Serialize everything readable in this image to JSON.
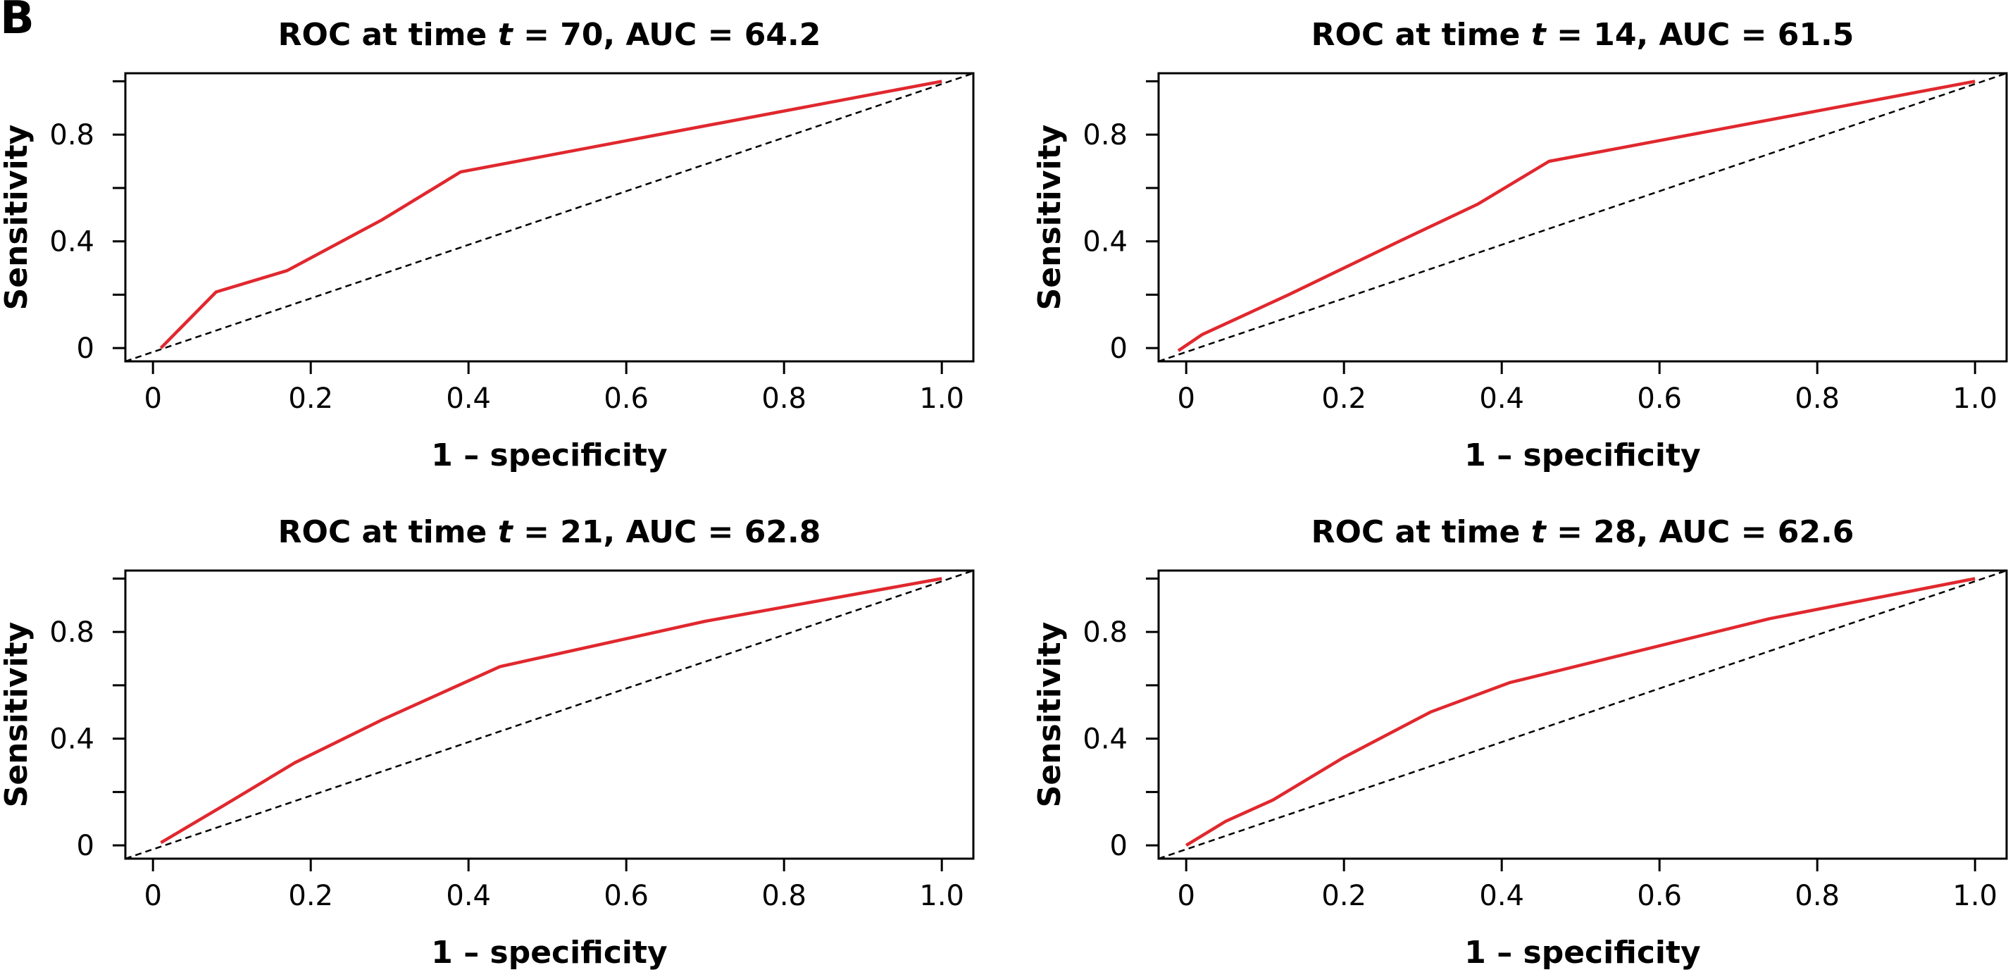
{
  "panel_label": "B",
  "colors": {
    "roc_line": "#e0282e",
    "reference_line": "#000000",
    "axes": "#000000"
  },
  "chart_data": [
    {
      "type": "line",
      "title_prefix": "ROC at time ",
      "title_var": "t",
      "title_suffix": " = 70, AUC = 64.2",
      "xlabel": "1 – specificity",
      "ylabel": "Sensitivity",
      "xlim": [
        -0.035,
        1.04
      ],
      "ylim": [
        -0.05,
        1.03
      ],
      "xticks": [
        0,
        0.2,
        0.4,
        0.6,
        0.8,
        1.0
      ],
      "xtick_labels": [
        "0",
        "0.2",
        "0.4",
        "0.6",
        "0.8",
        "1.0"
      ],
      "yticks": [
        0,
        0.2,
        0.4,
        0.6,
        0.8,
        1.0
      ],
      "ytick_labels": [
        "0",
        "",
        "0.4",
        "",
        "0.8",
        ""
      ],
      "grid": false,
      "series": [
        {
          "x": [
            0.01,
            0.08,
            0.17,
            0.29,
            0.39,
            1.0
          ],
          "y": [
            0.0,
            0.21,
            0.29,
            0.48,
            0.66,
            1.0
          ]
        }
      ],
      "reference": {
        "x": [
          -0.035,
          1.04
        ],
        "y": [
          -0.05,
          1.03
        ]
      }
    },
    {
      "type": "line",
      "title_prefix": "ROC at time ",
      "title_var": "t",
      "title_suffix": " = 14, AUC = 61.5",
      "xlabel": "1 – specificity",
      "ylabel": "Sensitivity",
      "xlim": [
        -0.035,
        1.04
      ],
      "ylim": [
        -0.05,
        1.03
      ],
      "xticks": [
        0,
        0.2,
        0.4,
        0.6,
        0.8,
        1.0
      ],
      "xtick_labels": [
        "0",
        "0.2",
        "0.4",
        "0.6",
        "0.8",
        "1.0"
      ],
      "yticks": [
        0,
        0.2,
        0.4,
        0.6,
        0.8,
        1.0
      ],
      "ytick_labels": [
        "0",
        "",
        "0.4",
        "",
        "0.8",
        ""
      ],
      "grid": false,
      "series": [
        {
          "x": [
            -0.01,
            0.02,
            0.13,
            0.27,
            0.37,
            0.46,
            1.0
          ],
          "y": [
            -0.01,
            0.05,
            0.2,
            0.4,
            0.54,
            0.7,
            1.0
          ]
        }
      ],
      "reference": {
        "x": [
          -0.035,
          1.04
        ],
        "y": [
          -0.05,
          1.03
        ]
      }
    },
    {
      "type": "line",
      "title_prefix": "ROC at time ",
      "title_var": "t",
      "title_suffix": " = 21, AUC = 62.8",
      "xlabel": "1 – specificity",
      "ylabel": "Sensitivity",
      "xlim": [
        -0.035,
        1.04
      ],
      "ylim": [
        -0.05,
        1.03
      ],
      "xticks": [
        0,
        0.2,
        0.4,
        0.6,
        0.8,
        1.0
      ],
      "xtick_labels": [
        "0",
        "0.2",
        "0.4",
        "0.6",
        "0.8",
        "1.0"
      ],
      "yticks": [
        0,
        0.2,
        0.4,
        0.6,
        0.8,
        1.0
      ],
      "ytick_labels": [
        "0",
        "",
        "0.4",
        "",
        "0.8",
        ""
      ],
      "grid": false,
      "series": [
        {
          "x": [
            0.01,
            0.09,
            0.18,
            0.29,
            0.44,
            0.7,
            1.0
          ],
          "y": [
            0.01,
            0.15,
            0.31,
            0.47,
            0.67,
            0.84,
            1.0
          ]
        }
      ],
      "reference": {
        "x": [
          -0.035,
          1.04
        ],
        "y": [
          -0.05,
          1.03
        ]
      }
    },
    {
      "type": "line",
      "title_prefix": "ROC at time ",
      "title_var": "t",
      "title_suffix": " = 28, AUC = 62.6",
      "xlabel": "1 – specificity",
      "ylabel": "Sensitivity",
      "xlim": [
        -0.035,
        1.04
      ],
      "ylim": [
        -0.05,
        1.03
      ],
      "xticks": [
        0,
        0.2,
        0.4,
        0.6,
        0.8,
        1.0
      ],
      "xtick_labels": [
        "0",
        "0.2",
        "0.4",
        "0.6",
        "0.8",
        "1.0"
      ],
      "yticks": [
        0,
        0.2,
        0.4,
        0.6,
        0.8,
        1.0
      ],
      "ytick_labels": [
        "0",
        "",
        "0.4",
        "",
        "0.8",
        ""
      ],
      "grid": false,
      "series": [
        {
          "x": [
            0.0,
            0.05,
            0.11,
            0.2,
            0.31,
            0.41,
            0.74,
            1.0
          ],
          "y": [
            0.0,
            0.09,
            0.17,
            0.33,
            0.5,
            0.61,
            0.85,
            1.0
          ]
        }
      ],
      "reference": {
        "x": [
          -0.035,
          1.04
        ],
        "y": [
          -0.05,
          1.03
        ]
      }
    }
  ]
}
